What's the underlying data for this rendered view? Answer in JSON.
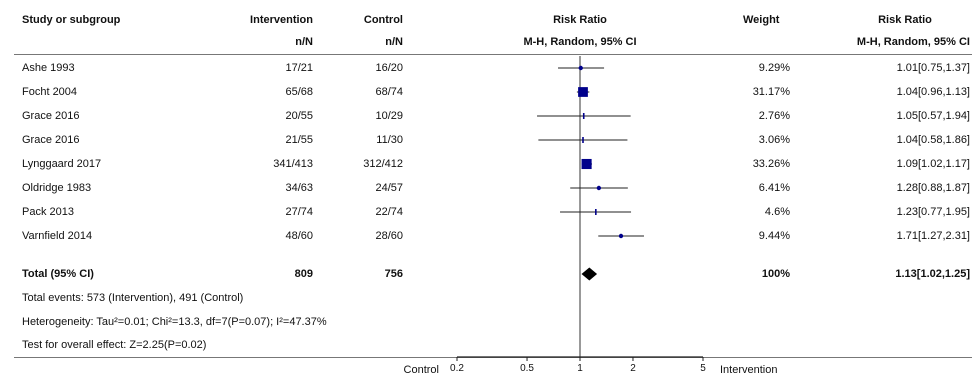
{
  "headers": {
    "study": "Study or subgroup",
    "intervention": "Intervention",
    "intervention_sub": "n/N",
    "control": "Control",
    "control_sub": "n/N",
    "risk_ratio": "Risk Ratio",
    "risk_ratio_sub": "M-H, Random, 95% CI",
    "weight": "Weight",
    "risk_ratio2": "Risk Ratio",
    "risk_ratio2_sub": "M-H, Random, 95% CI"
  },
  "total": {
    "label": "Total (95% CI)",
    "intervention": "809",
    "control": "756",
    "weight": "100%",
    "ci_text": "1.13[1.02,1.25]",
    "rr": 1.13,
    "lo": 1.02,
    "hi": 1.25
  },
  "footnotes": {
    "events": "Total events: 573 (Intervention), 491 (Control)",
    "heterogeneity": "Heterogeneity: Tau²=0.01; Chi²=13.3, df=7(P=0.07); I²=47.37%",
    "overall": "Test for overall effect: Z=2.25(P=0.02)"
  },
  "axis": {
    "left_label": "Control",
    "right_label": "Intervention"
  },
  "chart_data": {
    "type": "forest",
    "scale": "log",
    "xlim": [
      0.2,
      5
    ],
    "ticks": [
      0.2,
      0.5,
      1,
      2,
      5
    ],
    "tick_labels": [
      "0.2",
      "0.5",
      "1",
      "2",
      "5"
    ],
    "null_line": 1,
    "studies": [
      {
        "name": "Ashe 1993",
        "intervention": "17/21",
        "control": "16/20",
        "weight": "9.29%",
        "w": 9.29,
        "rr": 1.01,
        "lo": 0.75,
        "hi": 1.37,
        "ci_text": "1.01[0.75,1.37]"
      },
      {
        "name": "Focht 2004",
        "intervention": "65/68",
        "control": "68/74",
        "weight": "31.17%",
        "w": 31.17,
        "rr": 1.04,
        "lo": 0.96,
        "hi": 1.13,
        "ci_text": "1.04[0.96,1.13]"
      },
      {
        "name": "Grace 2016",
        "intervention": "20/55",
        "control": "10/29",
        "weight": "2.76%",
        "w": 2.76,
        "rr": 1.05,
        "lo": 0.57,
        "hi": 1.94,
        "ci_text": "1.05[0.57,1.94]"
      },
      {
        "name": "Grace 2016",
        "intervention": "21/55",
        "control": "11/30",
        "weight": "3.06%",
        "w": 3.06,
        "rr": 1.04,
        "lo": 0.58,
        "hi": 1.86,
        "ci_text": "1.04[0.58,1.86]"
      },
      {
        "name": "Lynggaard 2017",
        "intervention": "341/413",
        "control": "312/412",
        "weight": "33.26%",
        "w": 33.26,
        "rr": 1.09,
        "lo": 1.02,
        "hi": 1.17,
        "ci_text": "1.09[1.02,1.17]"
      },
      {
        "name": "Oldridge 1983",
        "intervention": "34/63",
        "control": "24/57",
        "weight": "6.41%",
        "w": 6.41,
        "rr": 1.28,
        "lo": 0.88,
        "hi": 1.87,
        "ci_text": "1.28[0.88,1.87]"
      },
      {
        "name": "Pack 2013",
        "intervention": "27/74",
        "control": "22/74",
        "weight": "4.6%",
        "w": 4.6,
        "rr": 1.23,
        "lo": 0.77,
        "hi": 1.95,
        "ci_text": "1.23[0.77,1.95]"
      },
      {
        "name": "Varnfield 2014",
        "intervention": "48/60",
        "control": "28/60",
        "weight": "9.44%",
        "w": 9.44,
        "rr": 1.71,
        "lo": 1.27,
        "hi": 2.31,
        "ci_text": "1.71[1.27,2.31]"
      }
    ],
    "colors": {
      "marker": "#00008b",
      "diamond": "#000000"
    }
  }
}
